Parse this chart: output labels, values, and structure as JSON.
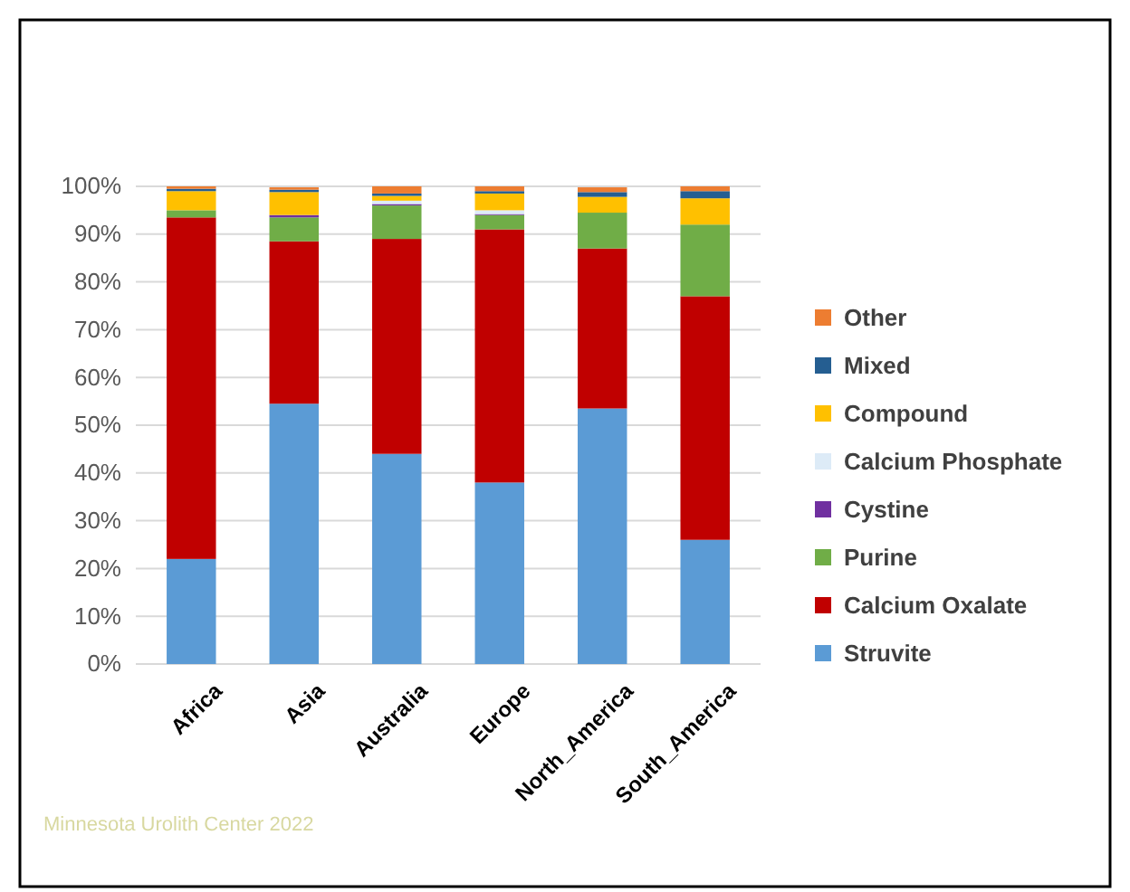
{
  "chart_data": {
    "type": "bar",
    "stacked": true,
    "categories": [
      "Africa",
      "Asia",
      "Australia",
      "Europe",
      "North_America",
      "South_America"
    ],
    "series": [
      {
        "name": "Struvite",
        "color": "#5b9bd5",
        "values": [
          22,
          54.5,
          44,
          38,
          53.5,
          26
        ]
      },
      {
        "name": "Calcium Oxalate",
        "color": "#c00000",
        "values": [
          71.5,
          34,
          45,
          53,
          33.5,
          51
        ]
      },
      {
        "name": "Purine",
        "color": "#70ad47",
        "values": [
          1.5,
          5,
          7,
          3,
          7.5,
          15
        ]
      },
      {
        "name": "Cystine",
        "color": "#7030a0",
        "values": [
          0,
          0.5,
          0.3,
          0.2,
          0,
          0
        ]
      },
      {
        "name": "Calcium Phosphate",
        "color": "#ddebf7",
        "values": [
          0,
          null,
          0.7,
          0.8,
          null,
          0
        ]
      },
      {
        "name": "Compound",
        "color": "#ffc000",
        "values": [
          4,
          4.8,
          1,
          3.5,
          3.3,
          5.5
        ]
      },
      {
        "name": "Mixed",
        "color": "#255e91",
        "values": [
          0.5,
          0.5,
          0.5,
          0.5,
          1,
          1.5
        ]
      },
      {
        "name": "Other",
        "color": "#ed7d31",
        "values": [
          0.5,
          0.5,
          1.5,
          1,
          1,
          1
        ]
      }
    ],
    "ylim": [
      0,
      100
    ],
    "yticks": [
      {
        "value": 0,
        "label": "0%"
      },
      {
        "value": 10,
        "label": "10%"
      },
      {
        "value": 20,
        "label": "20%"
      },
      {
        "value": 30,
        "label": "30%"
      },
      {
        "value": 40,
        "label": "40%"
      },
      {
        "value": 50,
        "label": "50%"
      },
      {
        "value": 60,
        "label": "60%"
      },
      {
        "value": 70,
        "label": "70%"
      },
      {
        "value": 80,
        "label": "80%"
      },
      {
        "value": 90,
        "label": "90%"
      },
      {
        "value": 100,
        "label": "100%"
      }
    ],
    "grid": "y",
    "legend": "right",
    "annotations": [
      "Minnesota Urolith Center 2022"
    ]
  }
}
